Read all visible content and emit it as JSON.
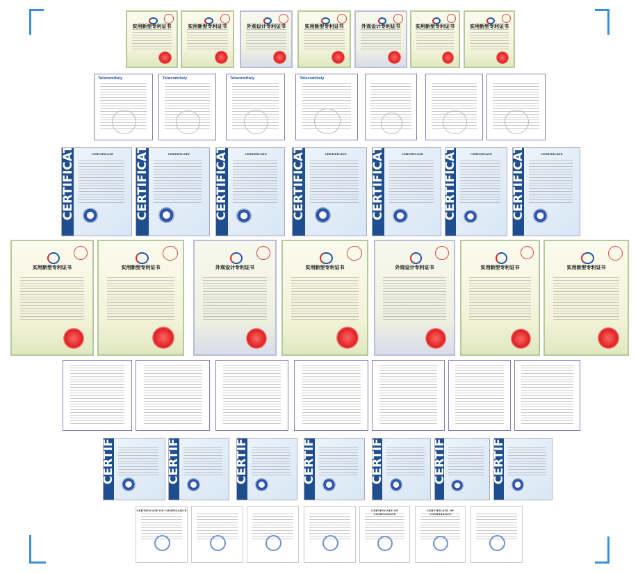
{
  "rows": [
    {
      "type": "patent",
      "titles": [
        "实用新型专利证书",
        "实用新型专利证书",
        "外观设计专利证书",
        "实用新型专利证书",
        "外观设计专利证书",
        "实用新型专利证书",
        "实用新型专利证书"
      ]
    },
    {
      "type": "telecom",
      "titles": [
        "Telecomitaly",
        "Telecomitaly",
        "Telecomitaly",
        "Telecomitaly",
        "",
        "",
        ""
      ]
    },
    {
      "type": "ce",
      "titles": [
        "CERTIFICATE",
        "CERTIFICATE",
        "CERTIFICATE",
        "CERTIFICATE",
        "CERTIFICATE",
        "CERTIFICATE",
        "CERTIFICATE"
      ],
      "band": "CERTIFICATE"
    },
    {
      "type": "patent",
      "titles": [
        "实用新型专利证书",
        "实用新型专利证书",
        "外观设计专利证书",
        "实用新型专利证书",
        "外观设计专利证书",
        "实用新型专利证书",
        "实用新型专利证书"
      ]
    },
    {
      "type": "report",
      "titles": [
        "",
        "",
        "",
        "",
        "",
        "",
        ""
      ]
    },
    {
      "type": "ce",
      "titles": [
        "",
        "",
        "",
        "",
        "",
        "",
        ""
      ],
      "band": "CERTIFICA"
    },
    {
      "type": "compliance",
      "titles": [
        "CERTIFICATE OF COMPLIANCE",
        "",
        "",
        "",
        "CERTIFICATE OF COMPLIANCE",
        "CERTIFICATE OF COMPLIANCE",
        ""
      ]
    }
  ],
  "colors": {
    "accent": "#3b8fd6",
    "ce_band": "#1f4e8f",
    "seal_red": "#d22222"
  }
}
